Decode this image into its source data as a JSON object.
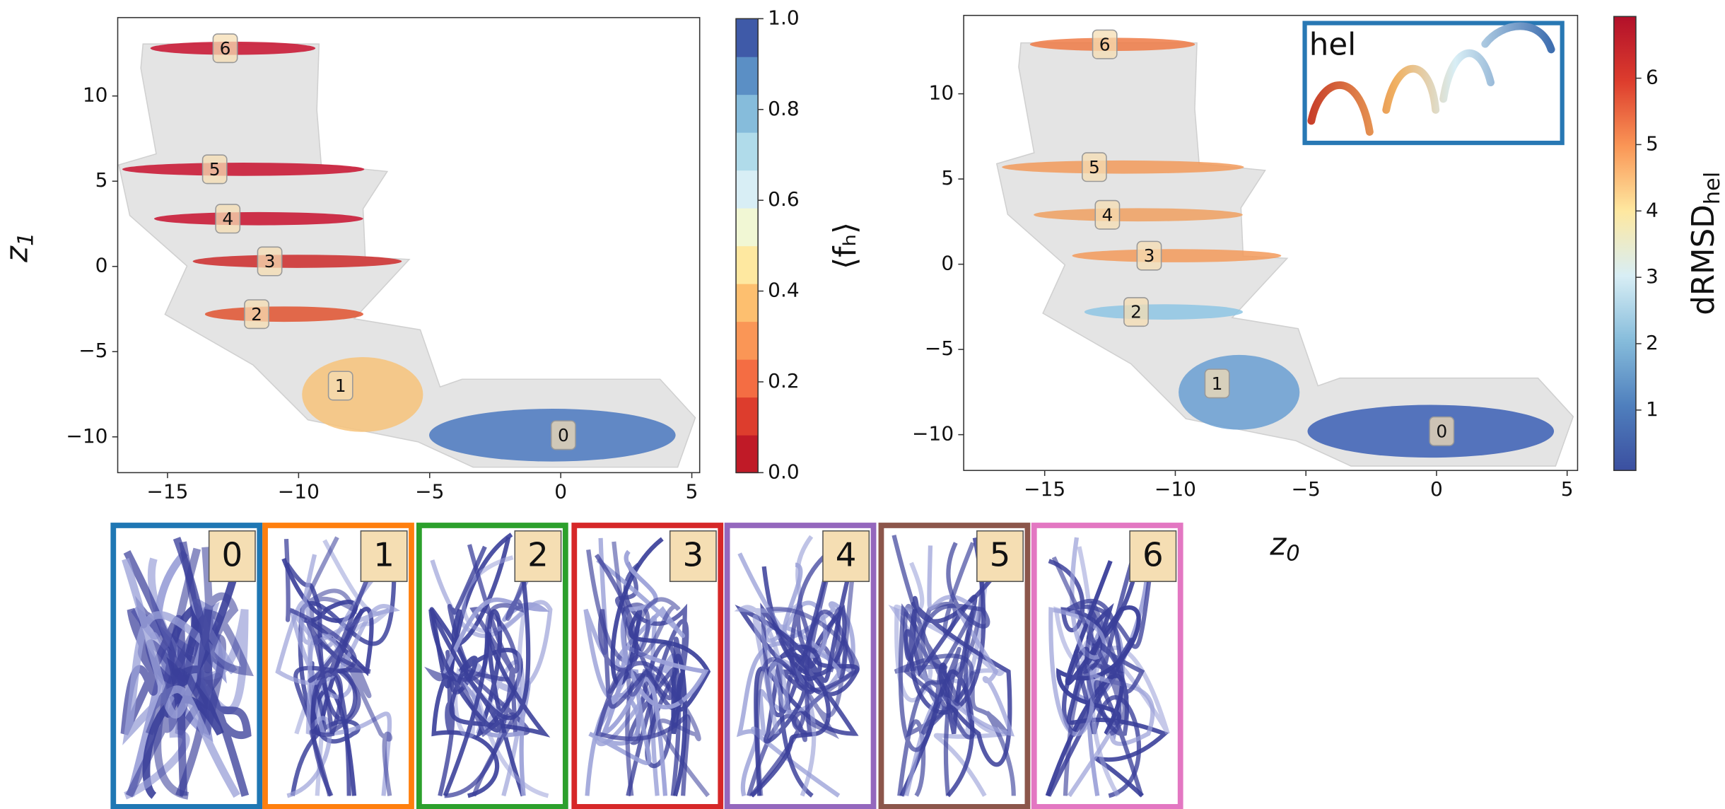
{
  "chart_data": [
    {
      "type": "scatter",
      "xlim": [
        -16.9,
        5.3
      ],
      "ylim": [
        -12.1,
        14.6
      ],
      "xticks": [
        {
          "value": -15,
          "label": "−15"
        },
        {
          "value": -10,
          "label": "−10"
        },
        {
          "value": -5,
          "label": "−5"
        },
        0,
        5
      ],
      "yticks": [
        {
          "value": -10,
          "label": "−10"
        },
        {
          "value": -5,
          "label": "−5"
        },
        0,
        5,
        10
      ],
      "ylabel": "z",
      "ylabel_sub": "1",
      "clusters": {
        "labels": [
          "0",
          "1",
          "2",
          "3",
          "4",
          "5",
          "6"
        ],
        "x": [
          0.1,
          -8.4,
          -11.6,
          -11.1,
          -12.7,
          -13.2,
          -12.8
        ],
        "y": [
          -9.9,
          -7.0,
          -2.8,
          0.3,
          2.8,
          5.7,
          12.8
        ],
        "colors": [
          "#4a78c0",
          "#f7c37a",
          "#e0522f",
          "#cc2a2a",
          "#c8102e",
          "#c8102e",
          "#c8102e"
        ]
      },
      "colorbar": {
        "label": "⟨fₕ⟩",
        "lim": [
          0,
          1
        ],
        "ticks": [
          {
            "value": 0,
            "label": "0.0"
          },
          {
            "value": 0.2,
            "label": "0.2"
          },
          {
            "value": 0.4,
            "label": "0.4"
          },
          {
            "value": 0.6,
            "label": "0.6"
          },
          {
            "value": 0.8,
            "label": "0.8"
          },
          {
            "value": 1,
            "label": "1.0"
          }
        ],
        "colors": [
          "#c01a27",
          "#dd3d2d",
          "#f46d43",
          "#fa9656",
          "#fdbf6f",
          "#fee8a0",
          "#f1f7d4",
          "#d8eef5",
          "#b0dbea",
          "#86bcdb",
          "#5b8fc5",
          "#3f5aa8"
        ],
        "discrete": true
      }
    },
    {
      "type": "scatter",
      "xlim": [
        -18.1,
        5.4
      ],
      "ylim": [
        -12.1,
        14.6
      ],
      "xticks": [
        {
          "value": -15,
          "label": "−15"
        },
        {
          "value": -10,
          "label": "−10"
        },
        {
          "value": -5,
          "label": "−5"
        },
        0,
        5
      ],
      "yticks": [
        {
          "value": -10,
          "label": "−10"
        },
        {
          "value": -5,
          "label": "−5"
        },
        0,
        5,
        10
      ],
      "xlabel": "z",
      "xlabel_sub": "0",
      "inset_label": "hel",
      "clusters": {
        "labels": [
          "0",
          "1",
          "2",
          "3",
          "4",
          "5",
          "6"
        ],
        "x": [
          0.2,
          -8.4,
          -11.5,
          -11.0,
          -12.6,
          -13.1,
          -12.7
        ],
        "y": [
          -9.8,
          -7.0,
          -2.8,
          0.5,
          2.9,
          5.7,
          12.9
        ],
        "colors": [
          "#3b5fb5",
          "#6a9fd2",
          "#8ec6e4",
          "#f39a5a",
          "#f0a060",
          "#f29a5a",
          "#ef7a45"
        ]
      },
      "colorbar": {
        "label": "dRMSD",
        "label_sub": "hel",
        "lim": [
          0.09,
          6.93
        ],
        "ticks": [
          1,
          2,
          3,
          4,
          5,
          6
        ],
        "colors": [
          "#3b4fa0",
          "#4f7fbd",
          "#86bcdb",
          "#d8eef5",
          "#fee8a0",
          "#fa9656",
          "#dd3d2d",
          "#b2102a"
        ],
        "discrete": false
      }
    }
  ],
  "thumbnails": {
    "labels": [
      "0",
      "1",
      "2",
      "3",
      "4",
      "5",
      "6"
    ],
    "colors": [
      "#1f77b4",
      "#ff7f0e",
      "#2ca02c",
      "#d62728",
      "#9467bd",
      "#8c564b",
      "#e377c2"
    ]
  }
}
